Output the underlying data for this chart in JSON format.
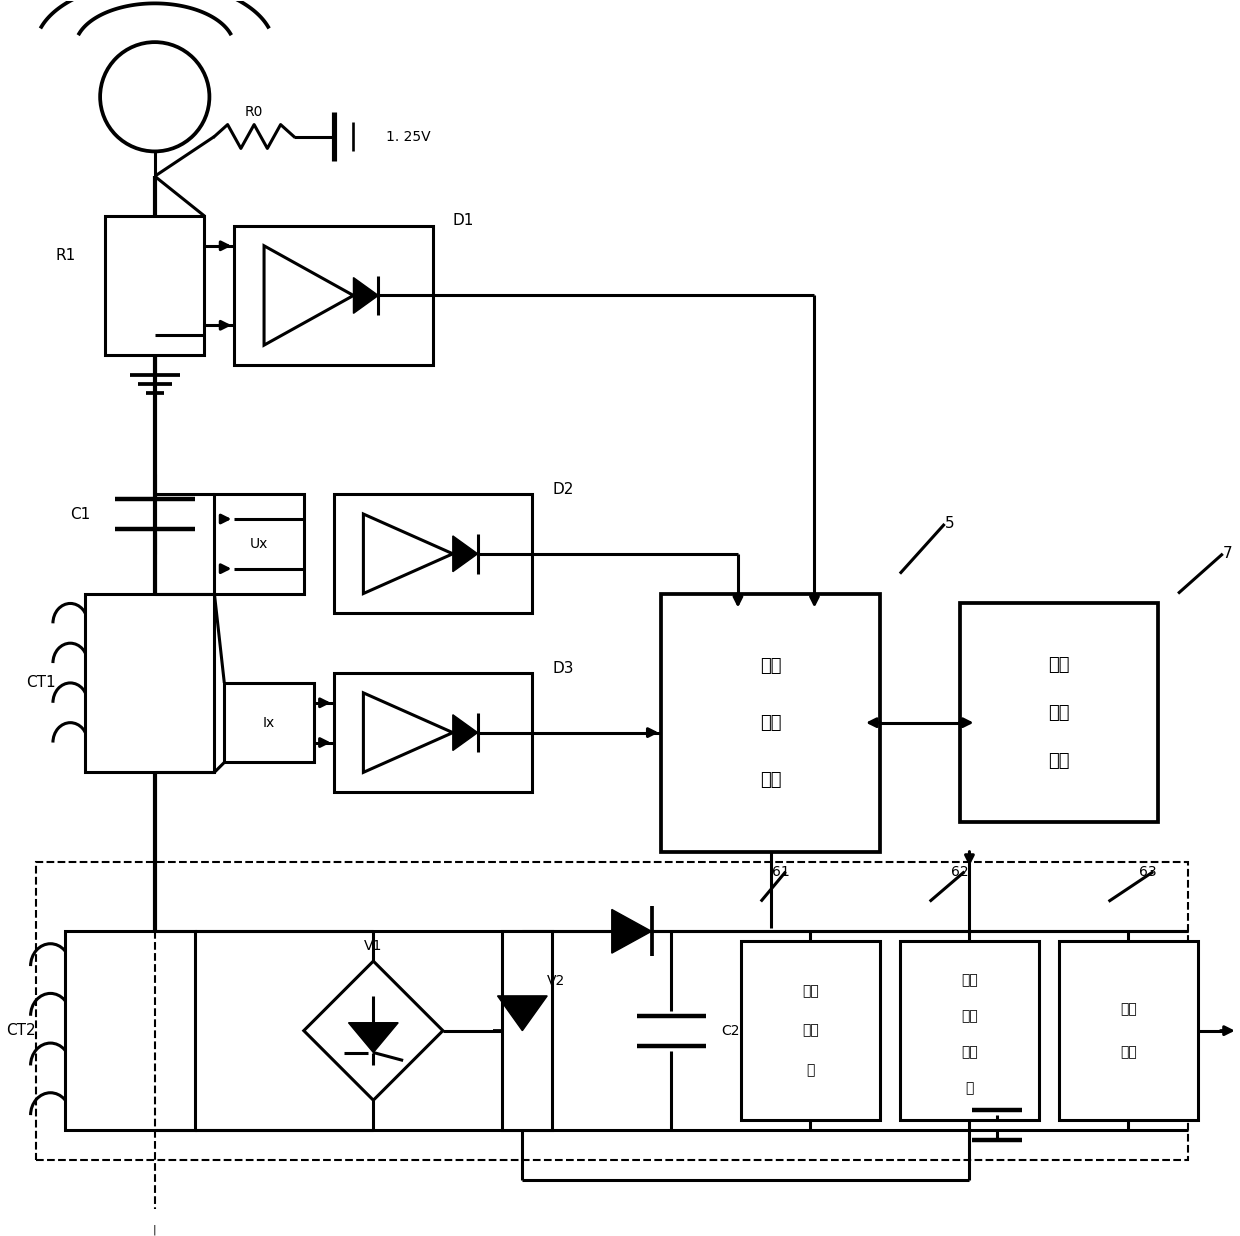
{
  "bg": "#ffffff",
  "lc": "#000000",
  "lw": 2.2,
  "fw": 12.4,
  "fh": 12.36,
  "labels": {
    "R0": "R0",
    "R1": "R1",
    "C1": "C1",
    "CT1": "CT1",
    "CT2": "CT2",
    "D1": "D1",
    "D2": "D2",
    "D3": "D3",
    "V1": "V1",
    "V2": "V2",
    "C2": "C2",
    "Ux": "Ux",
    "Ix": "Ix",
    "voltage": "1. 25V",
    "dm1": "数据",
    "dm2": "管理",
    "dm3": "模块",
    "wl1": "无线",
    "wl2": "通信",
    "wl3": "模块",
    "m61a": "泄放",
    "m61b": "防护",
    "m61c": "器",
    "m62a": "充放",
    "m62b": "电控",
    "m62c": "制单",
    "m62d": "元",
    "m63a": "稳压",
    "m63b": "单元",
    "n5": "5",
    "n7": "7",
    "n61": "61",
    "n62": "62",
    "n63": "63"
  }
}
